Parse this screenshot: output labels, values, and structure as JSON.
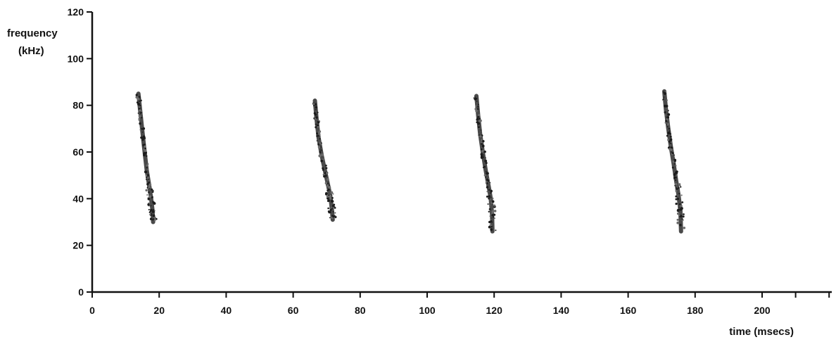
{
  "chart_data": {
    "type": "scatter",
    "title": "",
    "ylabel_line1": "frequency",
    "ylabel_line2": "(kHz)",
    "xlabel": "time (msecs)",
    "xlim": [
      0,
      220
    ],
    "ylim": [
      0,
      120
    ],
    "x_ticks": [
      0,
      20,
      40,
      60,
      80,
      100,
      120,
      140,
      160,
      180,
      200
    ],
    "y_ticks": [
      0,
      20,
      40,
      60,
      80,
      100,
      120
    ],
    "grid": false,
    "mark_color": "#2a2a2a",
    "calls": [
      {
        "points": [
          [
            13.8,
            85
          ],
          [
            14.3,
            78
          ],
          [
            14.9,
            70
          ],
          [
            15.5,
            62
          ],
          [
            16.3,
            52
          ],
          [
            17.1,
            45
          ],
          [
            17.6,
            40
          ],
          [
            18.0,
            35
          ],
          [
            18.2,
            30
          ]
        ]
      },
      {
        "points": [
          [
            66.5,
            82
          ],
          [
            67.0,
            74
          ],
          [
            67.6,
            66
          ],
          [
            68.6,
            58
          ],
          [
            69.8,
            50
          ],
          [
            70.7,
            44
          ],
          [
            71.2,
            40
          ],
          [
            71.6,
            35
          ],
          [
            71.8,
            31
          ]
        ]
      },
      {
        "points": [
          [
            114.7,
            84
          ],
          [
            115.2,
            76
          ],
          [
            115.8,
            68
          ],
          [
            116.6,
            60
          ],
          [
            117.5,
            52
          ],
          [
            118.4,
            45
          ],
          [
            119.0,
            40
          ],
          [
            119.4,
            33
          ],
          [
            119.5,
            26
          ]
        ]
      },
      {
        "points": [
          [
            170.8,
            86
          ],
          [
            171.3,
            78
          ],
          [
            172.0,
            70
          ],
          [
            172.8,
            62
          ],
          [
            173.6,
            55
          ],
          [
            174.3,
            48
          ],
          [
            175.0,
            42
          ],
          [
            175.6,
            35
          ],
          [
            175.8,
            26
          ]
        ]
      }
    ]
  }
}
